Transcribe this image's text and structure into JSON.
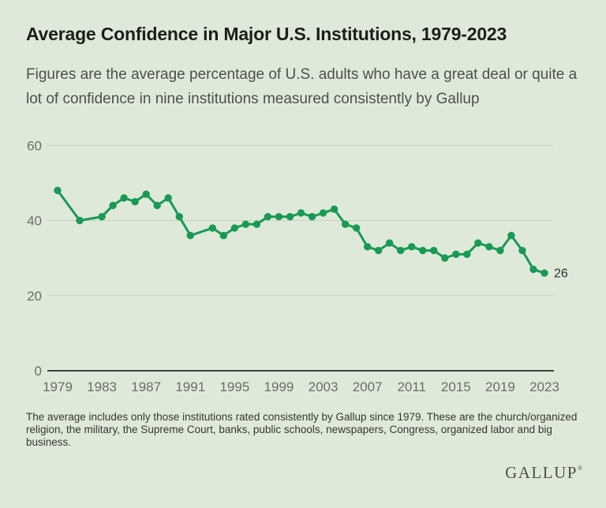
{
  "header": {
    "title": "Average Confidence in Major U.S. Institutions, 1979-2023",
    "subtitle": "Figures are the average percentage of U.S. adults who have a great deal or quite a lot of confidence in nine institutions measured consistently by Gallup"
  },
  "chart_data": {
    "type": "line",
    "title": "Average Confidence in Major U.S. Institutions, 1979-2023",
    "series_name": "Average % with a great deal or quite a lot of confidence (nine institutions)",
    "x": [
      1979,
      1981,
      1983,
      1984,
      1985,
      1986,
      1987,
      1988,
      1989,
      1990,
      1991,
      1993,
      1994,
      1995,
      1996,
      1997,
      1998,
      1999,
      2000,
      2001,
      2002,
      2003,
      2004,
      2005,
      2006,
      2007,
      2008,
      2009,
      2010,
      2011,
      2012,
      2013,
      2014,
      2015,
      2016,
      2017,
      2018,
      2019,
      2020,
      2021,
      2022,
      2023
    ],
    "values": [
      48,
      40,
      41,
      44,
      46,
      45,
      47,
      44,
      46,
      41,
      36,
      38,
      36,
      38,
      39,
      39,
      41,
      41,
      41,
      42,
      41,
      42,
      43,
      39,
      38,
      33,
      32,
      34,
      32,
      33,
      32,
      32,
      30,
      31,
      31,
      34,
      33,
      32,
      36,
      32,
      27,
      26
    ],
    "x_ticks": [
      1979,
      1983,
      1987,
      1991,
      1995,
      1999,
      2003,
      2007,
      2011,
      2015,
      2019,
      2023
    ],
    "y_ticks": [
      0,
      20,
      40,
      60
    ],
    "xlim": [
      1979,
      2023
    ],
    "ylim": [
      0,
      64
    ],
    "xlabel": "",
    "ylabel": "",
    "grid": "horizontal",
    "legend": "none",
    "end_label": "26"
  },
  "footnote": "The average includes only those institutions rated consistently by Gallup since 1979. These are the church/organized religion, the military, the Supreme Court, banks, public schools, newspapers, Congress, organized labor and big business.",
  "logo": {
    "text": "GALLUP",
    "registered_mark": "®"
  },
  "colors": {
    "background": "#dfe9d9",
    "line": "#189a55",
    "marker": "#189a55",
    "gridline": "#c7d1c2",
    "baseline": "#3b403b",
    "axis_text": "#696e66",
    "title_text": "#1c1e1c",
    "subtitle_text": "#4b514c",
    "footnote_text": "#33382f",
    "end_label_text": "#2c2f32",
    "logo_text": "#4c5145"
  }
}
